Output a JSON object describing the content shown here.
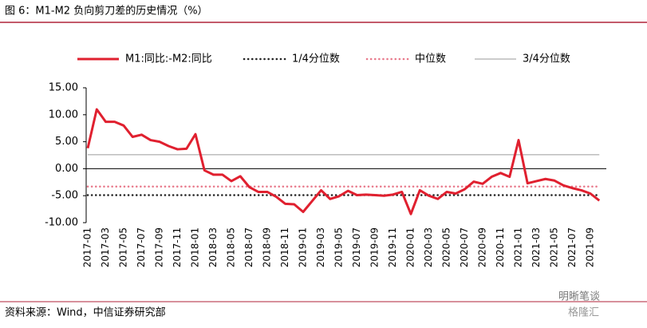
{
  "chart_data": {
    "type": "line",
    "title": "图 6：M1-M2 负向剪刀差的历史情况（%）",
    "source": "资料来源：Wind，中信证券研究部",
    "watermark": [
      "明晰笔谈",
      "格隆汇"
    ],
    "categories": [
      "2017-01",
      null,
      "2017-03",
      null,
      "2017-05",
      null,
      "2017-07",
      null,
      "2017-09",
      null,
      "2017-11",
      null,
      "2018-01",
      null,
      "2018-03",
      null,
      "2018-05",
      null,
      "2018-07",
      null,
      "2018-09",
      null,
      "2018-11",
      null,
      "2019-01",
      null,
      "2019-03",
      null,
      "2019-05",
      null,
      "2019-07",
      null,
      "2019-09",
      null,
      "2019-11",
      null,
      "2020-01",
      null,
      "2020-03",
      null,
      "2020-05",
      null,
      "2020-07",
      null,
      "2020-09",
      null,
      "2020-11",
      null,
      "2021-01",
      null,
      "2021-03",
      null,
      "2021-05",
      null,
      "2021-07",
      null,
      "2021-09",
      null
    ],
    "series": [
      {
        "name": "M1:同比:-M2:同比",
        "color": "#e0202f",
        "style": "solid",
        "values": [
          3.8,
          11.0,
          8.7,
          8.7,
          8.0,
          5.9,
          6.3,
          5.3,
          5.0,
          4.2,
          3.6,
          3.7,
          6.4,
          -0.3,
          -1.1,
          -1.1,
          -2.3,
          -1.4,
          -3.4,
          -4.3,
          -4.3,
          -5.2,
          -6.5,
          -6.6,
          -8.0,
          -6.0,
          -4.0,
          -5.6,
          -5.1,
          -4.1,
          -4.9,
          -4.8,
          -4.9,
          -5.0,
          -4.8,
          -4.3,
          -8.4,
          -4.0,
          -5.0,
          -5.6,
          -4.3,
          -4.6,
          -3.8,
          -2.4,
          -2.8,
          -1.5,
          -0.8,
          -1.5,
          5.3,
          -2.7,
          -2.3,
          -1.9,
          -2.2,
          -3.1,
          -3.6,
          -4.0,
          -4.6,
          -5.9
        ]
      },
      {
        "name": "1/4分位数",
        "color": "#222222",
        "style": "dotted",
        "values": [
          -4.9,
          -4.9,
          -4.9,
          -4.9,
          -4.9,
          -4.9,
          -4.9,
          -4.9,
          -4.9,
          -4.9,
          -4.9,
          -4.9,
          -4.9,
          -4.9,
          -4.9,
          -4.9,
          -4.9,
          -4.9,
          -4.9,
          -4.9,
          -4.9,
          -4.9,
          -4.9,
          -4.9,
          -4.9,
          -4.9,
          -4.9,
          -4.9,
          -4.9,
          -4.9,
          -4.9,
          -4.9,
          -4.9,
          -4.9,
          -4.9,
          -4.9,
          -4.9,
          -4.9,
          -4.9,
          -4.9,
          -4.9,
          -4.9,
          -4.9,
          -4.9,
          -4.9,
          -4.9,
          -4.9,
          -4.9,
          -4.9,
          -4.9,
          -4.9,
          -4.9,
          -4.9,
          -4.9,
          -4.9,
          -4.9,
          -4.9,
          -4.9
        ]
      },
      {
        "name": "中位数",
        "color": "#e8798b",
        "style": "dotted",
        "values": [
          -3.3,
          -3.3,
          -3.3,
          -3.3,
          -3.3,
          -3.3,
          -3.3,
          -3.3,
          -3.3,
          -3.3,
          -3.3,
          -3.3,
          -3.3,
          -3.3,
          -3.3,
          -3.3,
          -3.3,
          -3.3,
          -3.3,
          -3.3,
          -3.3,
          -3.3,
          -3.3,
          -3.3,
          -3.3,
          -3.3,
          -3.3,
          -3.3,
          -3.3,
          -3.3,
          -3.3,
          -3.3,
          -3.3,
          -3.3,
          -3.3,
          -3.3,
          -3.3,
          -3.3,
          -3.3,
          -3.3,
          -3.3,
          -3.3,
          -3.3,
          -3.3,
          -3.3,
          -3.3,
          -3.3,
          -3.3,
          -3.3,
          -3.3,
          -3.3,
          -3.3,
          -3.3,
          -3.3,
          -3.3,
          -3.3,
          -3.3,
          -3.3
        ]
      },
      {
        "name": "3/4分位数",
        "color": "#9a9a9a",
        "style": "thin",
        "values": [
          2.6,
          2.6,
          2.6,
          2.6,
          2.6,
          2.6,
          2.6,
          2.6,
          2.6,
          2.6,
          2.6,
          2.6,
          2.6,
          2.6,
          2.6,
          2.6,
          2.6,
          2.6,
          2.6,
          2.6,
          2.6,
          2.6,
          2.6,
          2.6,
          2.6,
          2.6,
          2.6,
          2.6,
          2.6,
          2.6,
          2.6,
          2.6,
          2.6,
          2.6,
          2.6,
          2.6,
          2.6,
          2.6,
          2.6,
          2.6,
          2.6,
          2.6,
          2.6,
          2.6,
          2.6,
          2.6,
          2.6,
          2.6,
          2.6,
          2.6,
          2.6,
          2.6,
          2.6,
          2.6,
          2.6,
          2.6,
          2.6,
          2.6
        ]
      }
    ],
    "ylim": [
      -10,
      15
    ],
    "yticks": [
      {
        "value": 15,
        "label": "15.00"
      },
      {
        "value": 10,
        "label": "10.00"
      },
      {
        "value": 5,
        "label": "5.00"
      },
      {
        "value": 0,
        "label": "0.00"
      },
      {
        "value": -5,
        "label": "-5.00"
      },
      {
        "value": -10,
        "label": "-10.00"
      }
    ],
    "grid": false,
    "legend": "top"
  }
}
